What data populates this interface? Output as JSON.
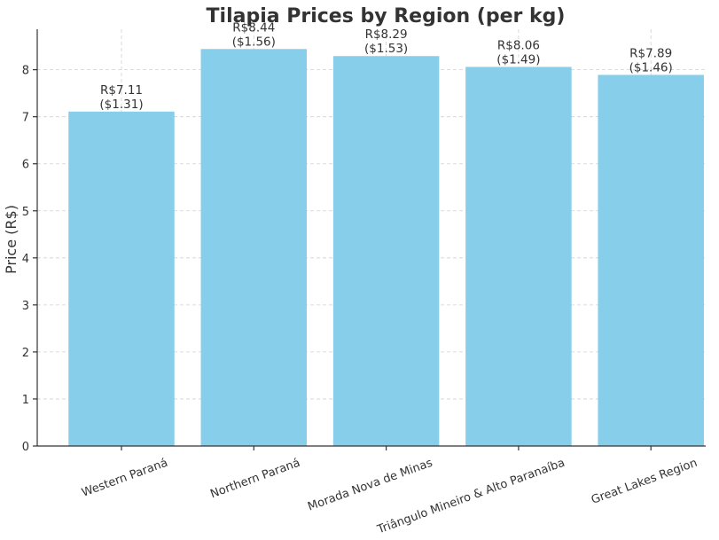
{
  "chart_data": {
    "type": "bar",
    "title": "Tilapia Prices by Region (per kg)",
    "xlabel": "",
    "ylabel": "Price (R$)",
    "ylim": [
      0,
      8.86
    ],
    "yticks": [
      0,
      1,
      2,
      3,
      4,
      5,
      6,
      7,
      8
    ],
    "grid": true,
    "bar_color": "#87CEEB",
    "categories": [
      "Western Paraná",
      "Northern Paraná",
      "Morada Nova de Minas",
      "Triângulo Mineiro & Alto Paranaíba",
      "Great Lakes Region"
    ],
    "values": [
      7.11,
      8.44,
      8.29,
      8.06,
      7.89
    ],
    "data_labels": [
      [
        "R$7.11",
        "($1.31)"
      ],
      [
        "R$8.44",
        "($1.56)"
      ],
      [
        "R$8.29",
        "($1.53)"
      ],
      [
        "R$8.06",
        "($1.49)"
      ],
      [
        "R$7.89",
        "($1.46)"
      ]
    ]
  }
}
